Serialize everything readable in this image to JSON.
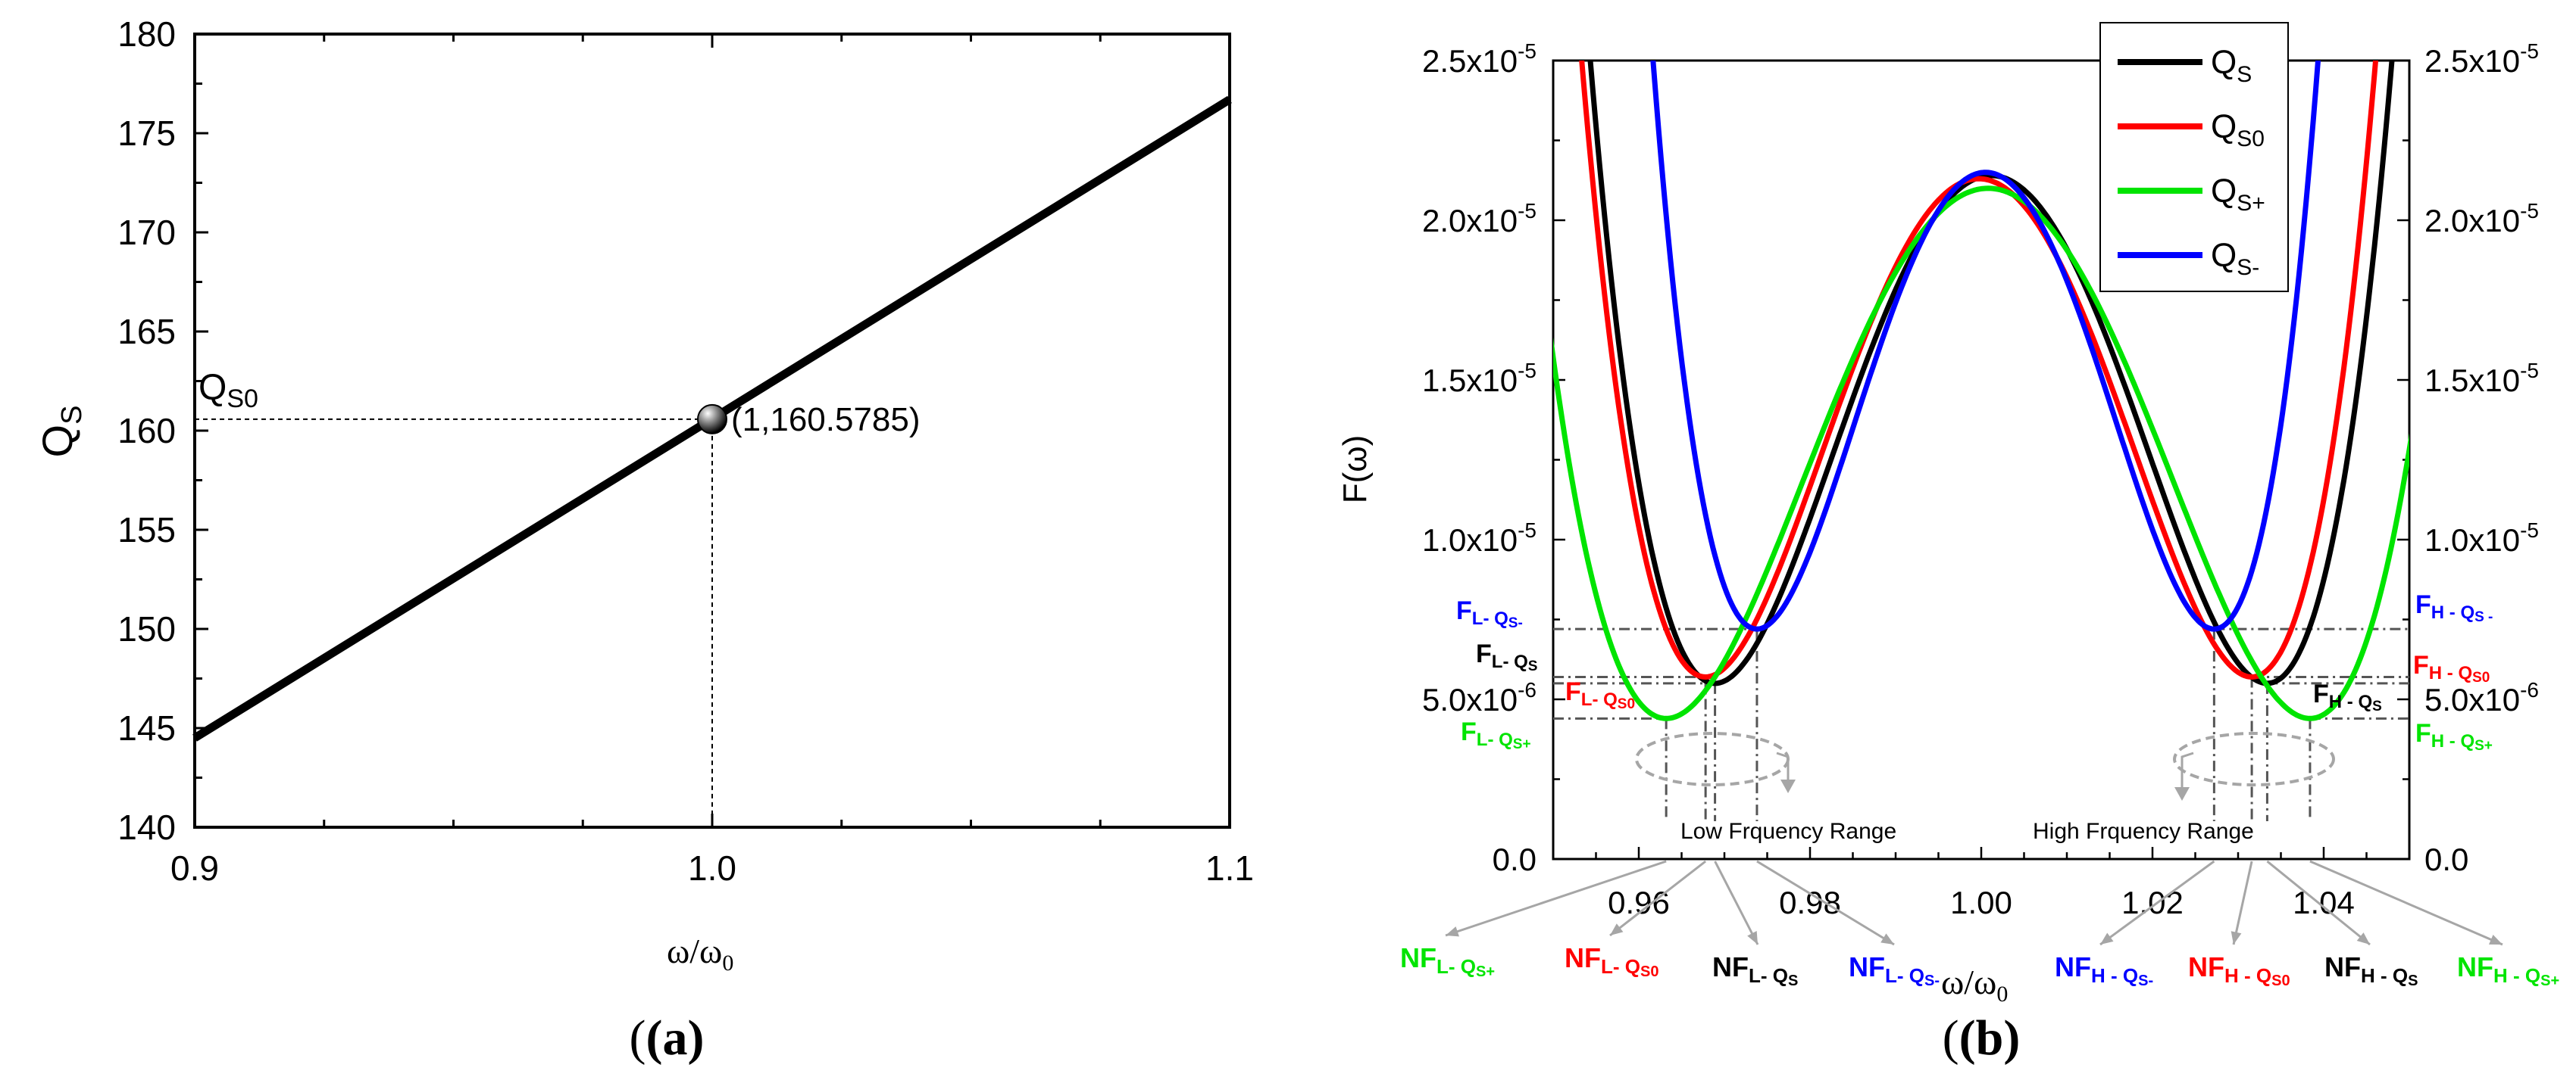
{
  "chart_data": [
    {
      "panel": "(a)",
      "type": "line",
      "xlabel": "ω/ω",
      "xlabel_sub": "0",
      "ylabel": "Q",
      "ylabel_sub": "S",
      "xlim": [
        0.9,
        1.1
      ],
      "ylim": [
        140,
        180
      ],
      "xticks": [
        0.9,
        1.0,
        1.1
      ],
      "xtick_labels": [
        "0.9",
        "1.0",
        "1.1"
      ],
      "yticks": [
        140,
        145,
        150,
        155,
        160,
        165,
        170,
        175,
        180
      ],
      "ytick_labels": [
        "140",
        "145",
        "150",
        "155",
        "160",
        "165",
        "170",
        "175",
        "180"
      ],
      "series": [
        {
          "name": "Q_S",
          "color": "#000000",
          "x": [
            0.9,
            1.1
          ],
          "y": [
            144.5,
            176.7
          ]
        }
      ],
      "marker": {
        "x": 1.0,
        "y": 160.5785,
        "label": "(1,160.5785)"
      },
      "reference_label": "Q",
      "reference_label_sub": "S0"
    },
    {
      "panel": "(b)",
      "type": "line",
      "xlabel": "ω/ω",
      "xlabel_sub": "0",
      "ylabel": "F(ω)",
      "xlim": [
        0.95,
        1.05
      ],
      "ylim": [
        0,
        2.5e-05
      ],
      "xticks": [
        0.96,
        0.98,
        1.0,
        1.02,
        1.04
      ],
      "xtick_labels": [
        "0.96",
        "0.98",
        "1.00",
        "1.02",
        "1.04"
      ],
      "yticks": [
        0,
        5e-06,
        1e-05,
        1.5e-05,
        2e-05,
        2.5e-05
      ],
      "ytick_mantissa": [
        "0.0",
        "5.0x10",
        "1.0x10",
        "1.5x10",
        "2.0x10",
        "2.5x10"
      ],
      "ytick_exp": [
        "",
        "-6",
        "-5",
        "-5",
        "-5",
        "-5"
      ],
      "legend": {
        "position": "top-right"
      },
      "series": [
        {
          "name": "Q",
          "sub": "S",
          "color": "#000000",
          "fl": 0.9689,
          "fh": 1.0334,
          "fmin": 5.5e-06,
          "fmax": 2.14e-05
        },
        {
          "name": "Q",
          "sub": "S0",
          "color": "#ff0000",
          "fl": 0.9678,
          "fh": 1.0316,
          "fmin": 5.7e-06,
          "fmax": 2.13e-05
        },
        {
          "name": "Q",
          "sub": "S+",
          "color": "#00e400",
          "fl": 0.9632,
          "fh": 1.0384,
          "fmin": 4.4e-06,
          "fmax": 2.1e-05
        },
        {
          "name": "Q",
          "sub": "S-",
          "color": "#0000ff",
          "fl": 0.9738,
          "fh": 1.0272,
          "fmin": 7.2e-06,
          "fmax": 2.15e-05
        }
      ],
      "annotations": {
        "low_range": "Low  Frquency Range",
        "high_range": "High  Frquency  Range",
        "fl_labels": [
          {
            "main": "F",
            "sub": "L- Q",
            "subsub": "S-",
            "color": "#0000ff"
          },
          {
            "main": "F",
            "sub": "L- Q",
            "subsub": "S",
            "color": "#000000"
          },
          {
            "main": "F",
            "sub": "L- Q",
            "subsub": "S0",
            "color": "#ff0000"
          },
          {
            "main": "F",
            "sub": "L- Q",
            "subsub": "S+",
            "color": "#00e400"
          }
        ],
        "fh_labels": [
          {
            "main": "F",
            "sub": "H - Q",
            "subsub": "S -",
            "color": "#0000ff"
          },
          {
            "main": "F",
            "sub": "H - Q",
            "subsub": "S0",
            "color": "#ff0000"
          },
          {
            "main": "F",
            "sub": "H - Q",
            "subsub": "S",
            "color": "#000000"
          },
          {
            "main": "F",
            "sub": "H - Q",
            "subsub": "S+",
            "color": "#00e400"
          }
        ],
        "nf_labels": [
          {
            "main": "NF",
            "sub": "L- Q",
            "subsub": "S+",
            "color": "#00e400"
          },
          {
            "main": "NF",
            "sub": "L- Q",
            "subsub": "S0",
            "color": "#ff0000"
          },
          {
            "main": "NF",
            "sub": "L- Q",
            "subsub": "S",
            "color": "#000000"
          },
          {
            "main": "NF",
            "sub": "L- Q",
            "subsub": "S-",
            "color": "#0000ff"
          },
          {
            "main": "NF",
            "sub": "H - Q",
            "subsub": "S-",
            "color": "#0000ff"
          },
          {
            "main": "NF",
            "sub": "H - Q",
            "subsub": "S0",
            "color": "#ff0000"
          },
          {
            "main": "NF",
            "sub": "H - Q",
            "subsub": "S",
            "color": "#000000"
          },
          {
            "main": "NF",
            "sub": "H - Q",
            "subsub": "S+",
            "color": "#00e400"
          }
        ]
      }
    }
  ]
}
